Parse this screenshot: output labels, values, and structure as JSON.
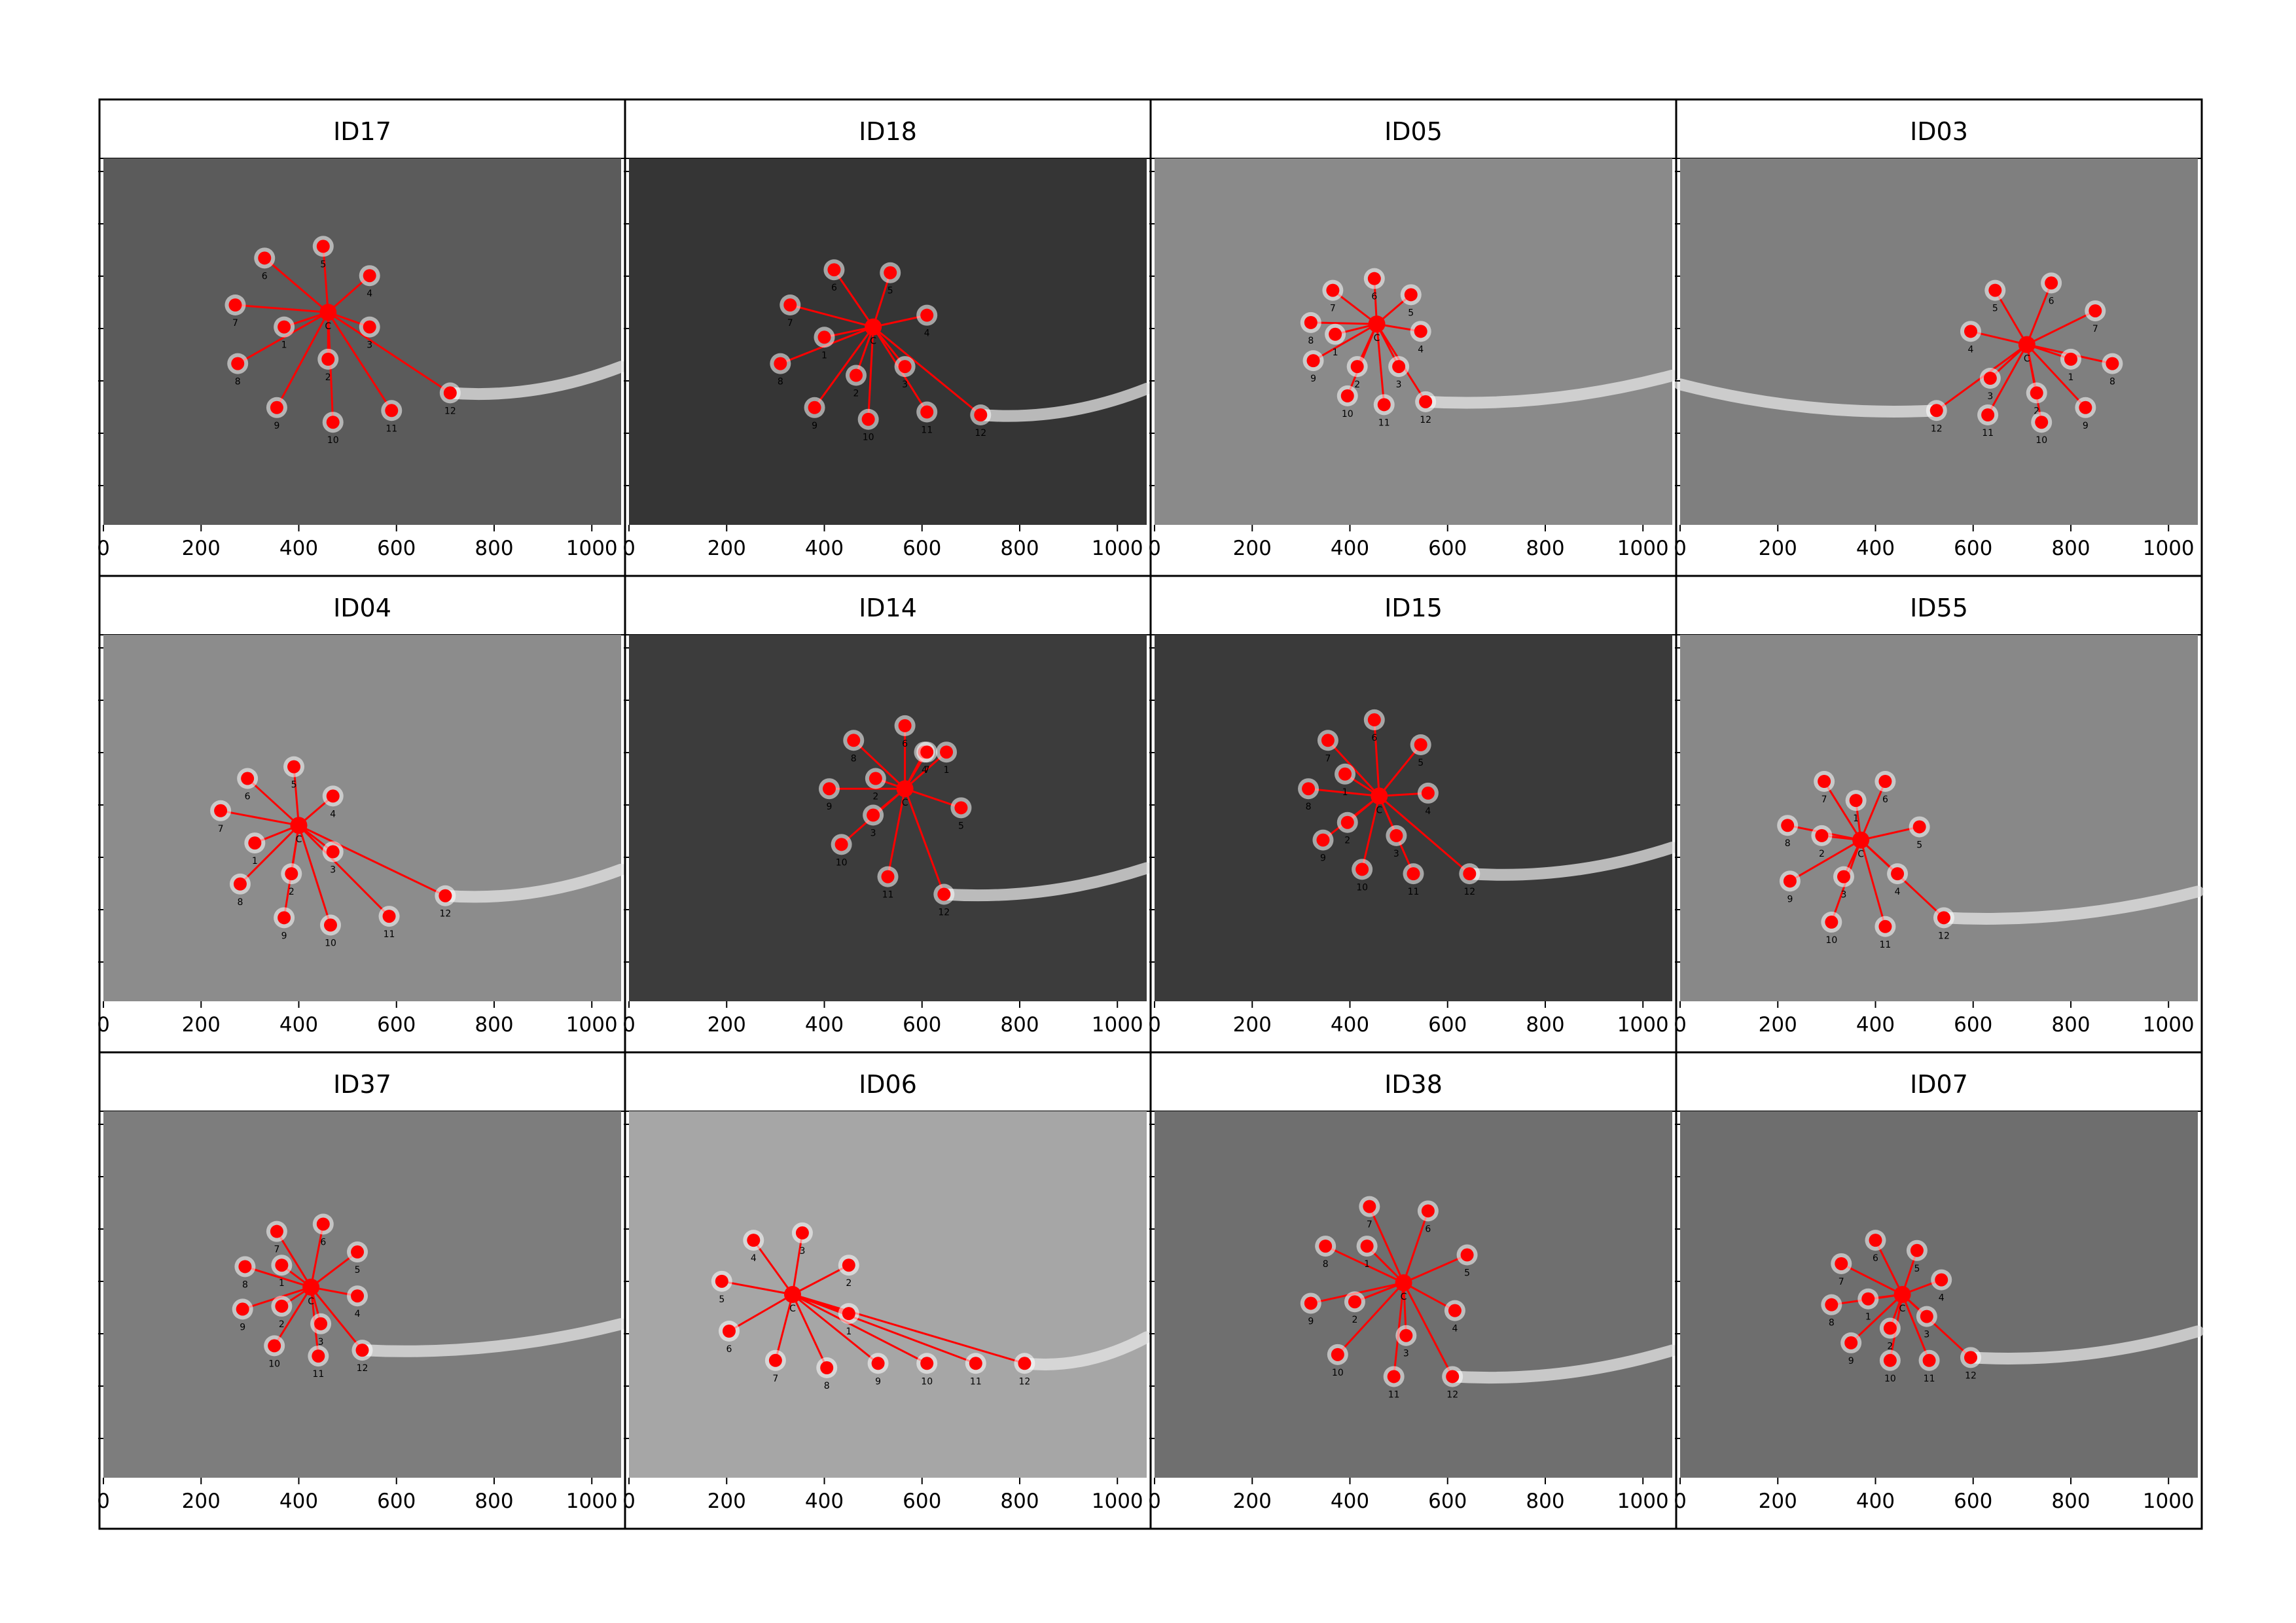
{
  "figure": {
    "columns": 4,
    "rows": 3
  },
  "axis": {
    "xticks": [
      0,
      200,
      400,
      600,
      800,
      1000
    ],
    "xlim": [
      0,
      1060
    ]
  },
  "colors": {
    "frame": "#000000",
    "marker": "#ff0000",
    "line": "#ff0000",
    "label": "#000000",
    "figure_bg": "#ffffff"
  },
  "chart_data": [
    {
      "type": "scatter",
      "title": "ID17",
      "bg": "#5b5b5b",
      "center": [
        460,
        105
      ],
      "points": [
        {
          "label": "1",
          "x": 370,
          "y": 115
        },
        {
          "label": "2",
          "x": 460,
          "y": 137
        },
        {
          "label": "3",
          "x": 545,
          "y": 115
        },
        {
          "label": "4",
          "x": 545,
          "y": 80
        },
        {
          "label": "5",
          "x": 450,
          "y": 60
        },
        {
          "label": "6",
          "x": 330,
          "y": 68
        },
        {
          "label": "7",
          "x": 270,
          "y": 100
        },
        {
          "label": "8",
          "x": 275,
          "y": 140
        },
        {
          "label": "9",
          "x": 355,
          "y": 170
        },
        {
          "label": "10",
          "x": 470,
          "y": 180
        },
        {
          "label": "11",
          "x": 590,
          "y": 172
        },
        {
          "label": "12",
          "x": 710,
          "y": 160
        }
      ]
    },
    {
      "type": "scatter",
      "title": "ID18",
      "bg": "#353535",
      "center": [
        500,
        115
      ],
      "points": [
        {
          "label": "1",
          "x": 400,
          "y": 122
        },
        {
          "label": "2",
          "x": 465,
          "y": 148
        },
        {
          "label": "3",
          "x": 565,
          "y": 142
        },
        {
          "label": "4",
          "x": 610,
          "y": 107
        },
        {
          "label": "5",
          "x": 535,
          "y": 78
        },
        {
          "label": "6",
          "x": 420,
          "y": 76
        },
        {
          "label": "7",
          "x": 330,
          "y": 100
        },
        {
          "label": "8",
          "x": 310,
          "y": 140
        },
        {
          "label": "9",
          "x": 380,
          "y": 170
        },
        {
          "label": "10",
          "x": 490,
          "y": 178
        },
        {
          "label": "11",
          "x": 610,
          "y": 173
        },
        {
          "label": "12",
          "x": 720,
          "y": 175
        }
      ]
    },
    {
      "type": "scatter",
      "title": "ID05",
      "bg": "#8a8a8a",
      "center": [
        455,
        113
      ],
      "points": [
        {
          "label": "1",
          "x": 370,
          "y": 120
        },
        {
          "label": "2",
          "x": 415,
          "y": 142
        },
        {
          "label": "3",
          "x": 500,
          "y": 142
        },
        {
          "label": "4",
          "x": 545,
          "y": 118
        },
        {
          "label": "5",
          "x": 525,
          "y": 93
        },
        {
          "label": "6",
          "x": 450,
          "y": 82
        },
        {
          "label": "7",
          "x": 365,
          "y": 90
        },
        {
          "label": "8",
          "x": 320,
          "y": 112
        },
        {
          "label": "9",
          "x": 325,
          "y": 138
        },
        {
          "label": "10",
          "x": 395,
          "y": 162
        },
        {
          "label": "11",
          "x": 470,
          "y": 168
        },
        {
          "label": "12",
          "x": 555,
          "y": 166
        }
      ]
    },
    {
      "type": "scatter",
      "title": "ID03",
      "bg": "#7f7f7f",
      "center": [
        710,
        127
      ],
      "points": [
        {
          "label": "1",
          "x": 800,
          "y": 137
        },
        {
          "label": "2",
          "x": 730,
          "y": 160
        },
        {
          "label": "3",
          "x": 635,
          "y": 150
        },
        {
          "label": "4",
          "x": 595,
          "y": 118
        },
        {
          "label": "5",
          "x": 645,
          "y": 90
        },
        {
          "label": "6",
          "x": 760,
          "y": 85
        },
        {
          "label": "7",
          "x": 850,
          "y": 104
        },
        {
          "label": "8",
          "x": 885,
          "y": 140
        },
        {
          "label": "9",
          "x": 830,
          "y": 170
        },
        {
          "label": "10",
          "x": 740,
          "y": 180
        },
        {
          "label": "11",
          "x": 630,
          "y": 175
        },
        {
          "label": "12",
          "x": 525,
          "y": 172
        }
      ]
    },
    {
      "type": "scatter",
      "title": "ID04",
      "bg": "#8c8c8c",
      "center": [
        400,
        130
      ],
      "points": [
        {
          "label": "1",
          "x": 310,
          "y": 142
        },
        {
          "label": "2",
          "x": 385,
          "y": 163
        },
        {
          "label": "3",
          "x": 470,
          "y": 148
        },
        {
          "label": "4",
          "x": 470,
          "y": 110
        },
        {
          "label": "5",
          "x": 390,
          "y": 90
        },
        {
          "label": "6",
          "x": 295,
          "y": 98
        },
        {
          "label": "7",
          "x": 240,
          "y": 120
        },
        {
          "label": "8",
          "x": 280,
          "y": 170
        },
        {
          "label": "9",
          "x": 370,
          "y": 193
        },
        {
          "label": "10",
          "x": 465,
          "y": 198
        },
        {
          "label": "11",
          "x": 585,
          "y": 192
        },
        {
          "label": "12",
          "x": 700,
          "y": 178
        }
      ]
    },
    {
      "type": "scatter",
      "title": "ID14",
      "bg": "#3c3c3c",
      "center": [
        565,
        105
      ],
      "points": [
        {
          "label": "1",
          "x": 650,
          "y": 80
        },
        {
          "label": "2",
          "x": 505,
          "y": 98
        },
        {
          "label": "3",
          "x": 500,
          "y": 123
        },
        {
          "label": "4",
          "x": 605,
          "y": 80
        },
        {
          "label": "5",
          "x": 680,
          "y": 118
        },
        {
          "label": "6",
          "x": 565,
          "y": 62
        },
        {
          "label": "7",
          "x": 610,
          "y": 80
        },
        {
          "label": "8",
          "x": 460,
          "y": 72
        },
        {
          "label": "9",
          "x": 410,
          "y": 105
        },
        {
          "label": "10",
          "x": 435,
          "y": 143
        },
        {
          "label": "11",
          "x": 530,
          "y": 165
        },
        {
          "label": "12",
          "x": 645,
          "y": 177
        }
      ]
    },
    {
      "type": "scatter",
      "title": "ID15",
      "bg": "#3a3a3a",
      "center": [
        460,
        110
      ],
      "points": [
        {
          "label": "1",
          "x": 390,
          "y": 95
        },
        {
          "label": "2",
          "x": 395,
          "y": 128
        },
        {
          "label": "3",
          "x": 495,
          "y": 137
        },
        {
          "label": "4",
          "x": 560,
          "y": 108
        },
        {
          "label": "5",
          "x": 545,
          "y": 75
        },
        {
          "label": "6",
          "x": 450,
          "y": 58
        },
        {
          "label": "7",
          "x": 355,
          "y": 72
        },
        {
          "label": "8",
          "x": 315,
          "y": 105
        },
        {
          "label": "9",
          "x": 345,
          "y": 140
        },
        {
          "label": "10",
          "x": 425,
          "y": 160
        },
        {
          "label": "11",
          "x": 530,
          "y": 163
        },
        {
          "label": "12",
          "x": 645,
          "y": 163
        }
      ]
    },
    {
      "type": "scatter",
      "title": "ID55",
      "bg": "#888888",
      "center": [
        370,
        140
      ],
      "points": [
        {
          "label": "1",
          "x": 360,
          "y": 113
        },
        {
          "label": "2",
          "x": 290,
          "y": 137
        },
        {
          "label": "3",
          "x": 335,
          "y": 165
        },
        {
          "label": "4",
          "x": 445,
          "y": 163
        },
        {
          "label": "5",
          "x": 490,
          "y": 131
        },
        {
          "label": "6",
          "x": 420,
          "y": 100
        },
        {
          "label": "7",
          "x": 295,
          "y": 100
        },
        {
          "label": "8",
          "x": 220,
          "y": 130
        },
        {
          "label": "9",
          "x": 225,
          "y": 168
        },
        {
          "label": "10",
          "x": 310,
          "y": 196
        },
        {
          "label": "11",
          "x": 420,
          "y": 199
        },
        {
          "label": "12",
          "x": 540,
          "y": 193
        }
      ]
    },
    {
      "type": "scatter",
      "title": "ID37",
      "bg": "#7d7d7d",
      "center": [
        425,
        120
      ],
      "points": [
        {
          "label": "1",
          "x": 365,
          "y": 105
        },
        {
          "label": "2",
          "x": 365,
          "y": 133
        },
        {
          "label": "3",
          "x": 445,
          "y": 145
        },
        {
          "label": "4",
          "x": 520,
          "y": 126
        },
        {
          "label": "5",
          "x": 520,
          "y": 96
        },
        {
          "label": "6",
          "x": 450,
          "y": 77
        },
        {
          "label": "7",
          "x": 355,
          "y": 82
        },
        {
          "label": "8",
          "x": 290,
          "y": 106
        },
        {
          "label": "9",
          "x": 285,
          "y": 135
        },
        {
          "label": "10",
          "x": 350,
          "y": 160
        },
        {
          "label": "11",
          "x": 440,
          "y": 167
        },
        {
          "label": "12",
          "x": 530,
          "y": 163
        }
      ]
    },
    {
      "type": "scatter",
      "title": "ID06",
      "bg": "#a6a6a6",
      "center": [
        335,
        125
      ],
      "points": [
        {
          "label": "1",
          "x": 450,
          "y": 138
        },
        {
          "label": "2",
          "x": 450,
          "y": 105
        },
        {
          "label": "3",
          "x": 355,
          "y": 83
        },
        {
          "label": "4",
          "x": 255,
          "y": 88
        },
        {
          "label": "5",
          "x": 190,
          "y": 116
        },
        {
          "label": "6",
          "x": 205,
          "y": 150
        },
        {
          "label": "7",
          "x": 300,
          "y": 170
        },
        {
          "label": "8",
          "x": 405,
          "y": 175
        },
        {
          "label": "9",
          "x": 510,
          "y": 172
        },
        {
          "label": "10",
          "x": 610,
          "y": 172
        },
        {
          "label": "11",
          "x": 710,
          "y": 172
        },
        {
          "label": "12",
          "x": 810,
          "y": 172
        }
      ]
    },
    {
      "type": "scatter",
      "title": "ID38",
      "bg": "#6f6f6f",
      "center": [
        510,
        117
      ],
      "points": [
        {
          "label": "1",
          "x": 435,
          "y": 92
        },
        {
          "label": "2",
          "x": 410,
          "y": 130
        },
        {
          "label": "3",
          "x": 515,
          "y": 153
        },
        {
          "label": "4",
          "x": 615,
          "y": 136
        },
        {
          "label": "5",
          "x": 640,
          "y": 98
        },
        {
          "label": "6",
          "x": 560,
          "y": 68
        },
        {
          "label": "7",
          "x": 440,
          "y": 65
        },
        {
          "label": "8",
          "x": 350,
          "y": 92
        },
        {
          "label": "9",
          "x": 320,
          "y": 131
        },
        {
          "label": "10",
          "x": 375,
          "y": 166
        },
        {
          "label": "11",
          "x": 490,
          "y": 181
        },
        {
          "label": "12",
          "x": 610,
          "y": 181
        }
      ]
    },
    {
      "type": "scatter",
      "title": "ID07",
      "bg": "#6e6e6e",
      "center": [
        455,
        125
      ],
      "points": [
        {
          "label": "1",
          "x": 385,
          "y": 128
        },
        {
          "label": "2",
          "x": 430,
          "y": 148
        },
        {
          "label": "3",
          "x": 505,
          "y": 140
        },
        {
          "label": "4",
          "x": 535,
          "y": 115
        },
        {
          "label": "5",
          "x": 485,
          "y": 95
        },
        {
          "label": "6",
          "x": 400,
          "y": 88
        },
        {
          "label": "7",
          "x": 330,
          "y": 104
        },
        {
          "label": "8",
          "x": 310,
          "y": 132
        },
        {
          "label": "9",
          "x": 350,
          "y": 158
        },
        {
          "label": "10",
          "x": 430,
          "y": 170
        },
        {
          "label": "11",
          "x": 510,
          "y": 170
        },
        {
          "label": "12",
          "x": 595,
          "y": 168
        }
      ]
    }
  ]
}
